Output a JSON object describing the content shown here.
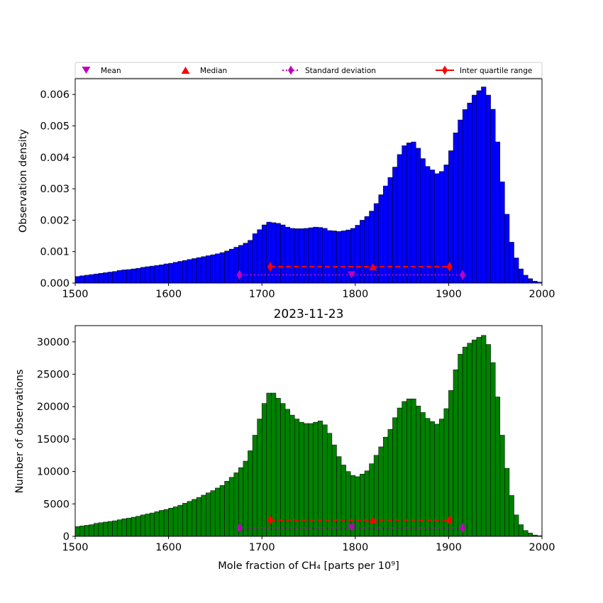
{
  "legend": {
    "entries": [
      {
        "label": "Mean",
        "marker": "triangle-down",
        "color": "#bf00bf"
      },
      {
        "label": "Median",
        "marker": "triangle-up",
        "color": "#ff0000"
      },
      {
        "label": "Standard deviation",
        "marker": "thin-diamond",
        "line": "dotted",
        "color": "#bf00bf"
      },
      {
        "label": "Inter quartile range",
        "marker": "thin-diamond",
        "line": "dashed",
        "color": "#ff0000"
      }
    ],
    "placement": "top"
  },
  "chart_data": [
    {
      "type": "bar",
      "title": "",
      "xlabel": "",
      "ylabel": "Observation density",
      "xlim": [
        1500,
        2000
      ],
      "ylim": [
        0,
        0.0065
      ],
      "xticks": [
        "1500",
        "1600",
        "1700",
        "1800",
        "1900",
        "2000"
      ],
      "yticks": [
        "0.000",
        "0.001",
        "0.002",
        "0.003",
        "0.004",
        "0.005",
        "0.006"
      ],
      "bin_start": 1500,
      "bin_width": 5,
      "bar_color": "#0000ff",
      "values": [
        0.00021,
        0.00023,
        0.00025,
        0.00027,
        0.00029,
        0.00031,
        0.00033,
        0.00035,
        0.00037,
        0.0004,
        0.00042,
        0.00043,
        0.00045,
        0.00047,
        0.0005,
        0.00052,
        0.00054,
        0.00056,
        0.00058,
        0.00061,
        0.00063,
        0.00066,
        0.00069,
        0.00072,
        0.00075,
        0.00078,
        0.00081,
        0.00084,
        0.00087,
        0.0009,
        0.00093,
        0.00097,
        0.00102,
        0.00108,
        0.00114,
        0.0012,
        0.00127,
        0.00136,
        0.00157,
        0.0017,
        0.00185,
        0.00194,
        0.00192,
        0.0019,
        0.00185,
        0.00178,
        0.00174,
        0.00173,
        0.00173,
        0.00174,
        0.00176,
        0.00178,
        0.00177,
        0.00174,
        0.00167,
        0.00166,
        0.00164,
        0.00166,
        0.00169,
        0.00174,
        0.00184,
        0.002,
        0.00212,
        0.00229,
        0.00253,
        0.00281,
        0.00309,
        0.00336,
        0.00369,
        0.00409,
        0.00437,
        0.00446,
        0.00449,
        0.00429,
        0.00396,
        0.00371,
        0.0036,
        0.00348,
        0.00355,
        0.00376,
        0.00421,
        0.00478,
        0.00519,
        0.00552,
        0.00573,
        0.00598,
        0.00612,
        0.00624,
        0.00598,
        0.00553,
        0.00449,
        0.00322,
        0.00219,
        0.0013,
        0.0008,
        0.00045,
        0.00025,
        0.00014,
        6e-05,
        3e-05
      ],
      "stats": {
        "mean": 1796,
        "median": 1819,
        "std": [
          1676,
          1915
        ],
        "iqr": [
          1709,
          1901
        ]
      },
      "stats_y": {
        "mean": 0.00026,
        "median": 0.00052,
        "std": 0.00026,
        "iqr": 0.00052
      }
    },
    {
      "type": "bar",
      "title": "2023-11-23",
      "xlabel": "Mole fraction of CH₄ [parts per 10⁹]",
      "ylabel": "Number of observations",
      "xlim": [
        1500,
        2000
      ],
      "ylim": [
        0,
        32500
      ],
      "xticks": [
        "1500",
        "1600",
        "1700",
        "1800",
        "1900",
        "2000"
      ],
      "yticks": [
        "0",
        "5000",
        "10000",
        "15000",
        "20000",
        "25000",
        "30000"
      ],
      "bin_start": 1500,
      "bin_width": 5,
      "bar_color": "#008000",
      "values": [
        1500,
        1600,
        1700,
        1800,
        2000,
        2100,
        2200,
        2300,
        2400,
        2550,
        2700,
        2800,
        2950,
        3100,
        3300,
        3450,
        3600,
        3800,
        4000,
        4150,
        4350,
        4550,
        4800,
        5100,
        5400,
        5700,
        6000,
        6350,
        6700,
        7050,
        7450,
        7850,
        8500,
        9100,
        9800,
        10600,
        11600,
        13200,
        15600,
        18100,
        20500,
        22100,
        22100,
        21300,
        20500,
        19600,
        18700,
        18100,
        17600,
        17400,
        17400,
        17600,
        17800,
        17200,
        15900,
        14100,
        12300,
        11000,
        10000,
        9400,
        9200,
        9600,
        10100,
        11200,
        12500,
        13800,
        15300,
        16500,
        18300,
        19800,
        20800,
        21200,
        21200,
        20100,
        19100,
        18200,
        17700,
        17300,
        18100,
        19700,
        22500,
        25700,
        28100,
        29200,
        29800,
        30300,
        30700,
        31000,
        29600,
        26800,
        21500,
        15600,
        10500,
        6300,
        3300,
        1800,
        900,
        500,
        200,
        100
      ],
      "stats": {
        "mean": 1796,
        "median": 1819,
        "std": [
          1676,
          1915
        ],
        "iqr": [
          1709,
          1901
        ]
      },
      "stats_y": {
        "mean": 1300,
        "median": 2500,
        "std": 1300,
        "iqr": 2500
      }
    }
  ]
}
